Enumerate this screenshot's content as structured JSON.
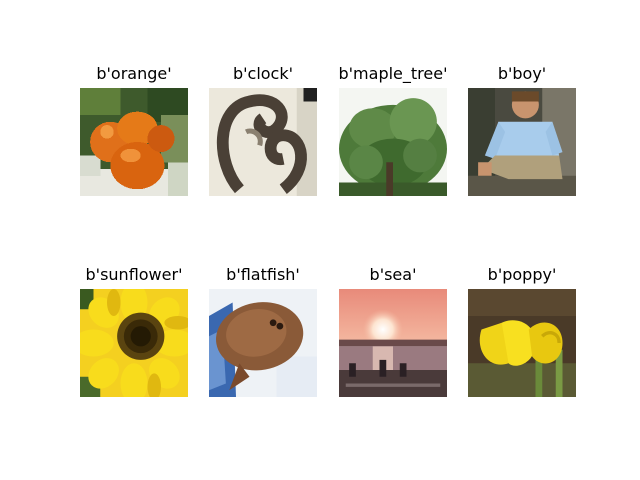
{
  "images": [
    {
      "title": "b'orange'",
      "icon": "orange-photo"
    },
    {
      "title": "b'clock'",
      "icon": "clock-photo"
    },
    {
      "title": "b'maple_tree'",
      "icon": "maple-tree-photo"
    },
    {
      "title": "b'boy'",
      "icon": "boy-photo"
    },
    {
      "title": "b'sunflower'",
      "icon": "sunflower-photo"
    },
    {
      "title": "b'flatfish'",
      "icon": "flatfish-photo"
    },
    {
      "title": "b'sea'",
      "icon": "sea-sunset-photo"
    },
    {
      "title": "b'poppy'",
      "icon": "poppy-photo"
    }
  ],
  "colors": {
    "background": "#ffffff",
    "text": "#000000"
  }
}
